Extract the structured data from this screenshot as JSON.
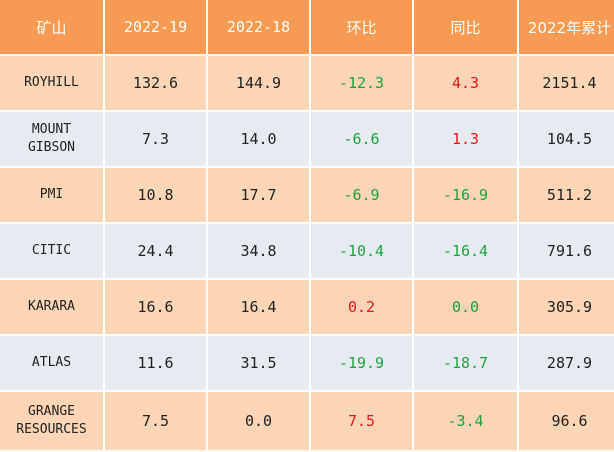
{
  "header": {
    "mine": "矿山",
    "col1": "2022-19",
    "col2": "2022-18",
    "mom": "环比",
    "yoy": "同比",
    "ytd": "2022年累计"
  },
  "colors": {
    "header_bg": "#F79B54",
    "row_odd_bg": "#FBD5B5",
    "row_even_bg": "#E6EBF2",
    "negative": "#1FA23E",
    "positive": "#E8161C"
  },
  "rows": [
    {
      "mine": "ROYHILL",
      "w19": "132.6",
      "w18": "144.9",
      "mom": "-12.3",
      "mom_sign": "neg",
      "yoy": "4.3",
      "yoy_sign": "pos",
      "ytd": "2151.4"
    },
    {
      "mine": "MOUNT GIBSON",
      "w19": "7.3",
      "w18": "14.0",
      "mom": "-6.6",
      "mom_sign": "neg",
      "yoy": "1.3",
      "yoy_sign": "pos",
      "ytd": "104.5"
    },
    {
      "mine": "PMI",
      "w19": "10.8",
      "w18": "17.7",
      "mom": "-6.9",
      "mom_sign": "neg",
      "yoy": "-16.9",
      "yoy_sign": "neg",
      "ytd": "511.2"
    },
    {
      "mine": "CITIC",
      "w19": "24.4",
      "w18": "34.8",
      "mom": "-10.4",
      "mom_sign": "neg",
      "yoy": "-16.4",
      "yoy_sign": "neg",
      "ytd": "791.6"
    },
    {
      "mine": "KARARA",
      "w19": "16.6",
      "w18": "16.4",
      "mom": "0.2",
      "mom_sign": "pos",
      "yoy": "0.0",
      "yoy_sign": "neg",
      "ytd": "305.9"
    },
    {
      "mine": "ATLAS",
      "w19": "11.6",
      "w18": "31.5",
      "mom": "-19.9",
      "mom_sign": "neg",
      "yoy": "-18.7",
      "yoy_sign": "neg",
      "ytd": "287.9"
    },
    {
      "mine": "GRANGE RESOURCES",
      "w19": "7.5",
      "w18": "0.0",
      "mom": "7.5",
      "mom_sign": "pos",
      "yoy": "-3.4",
      "yoy_sign": "neg",
      "ytd": "96.6"
    }
  ]
}
